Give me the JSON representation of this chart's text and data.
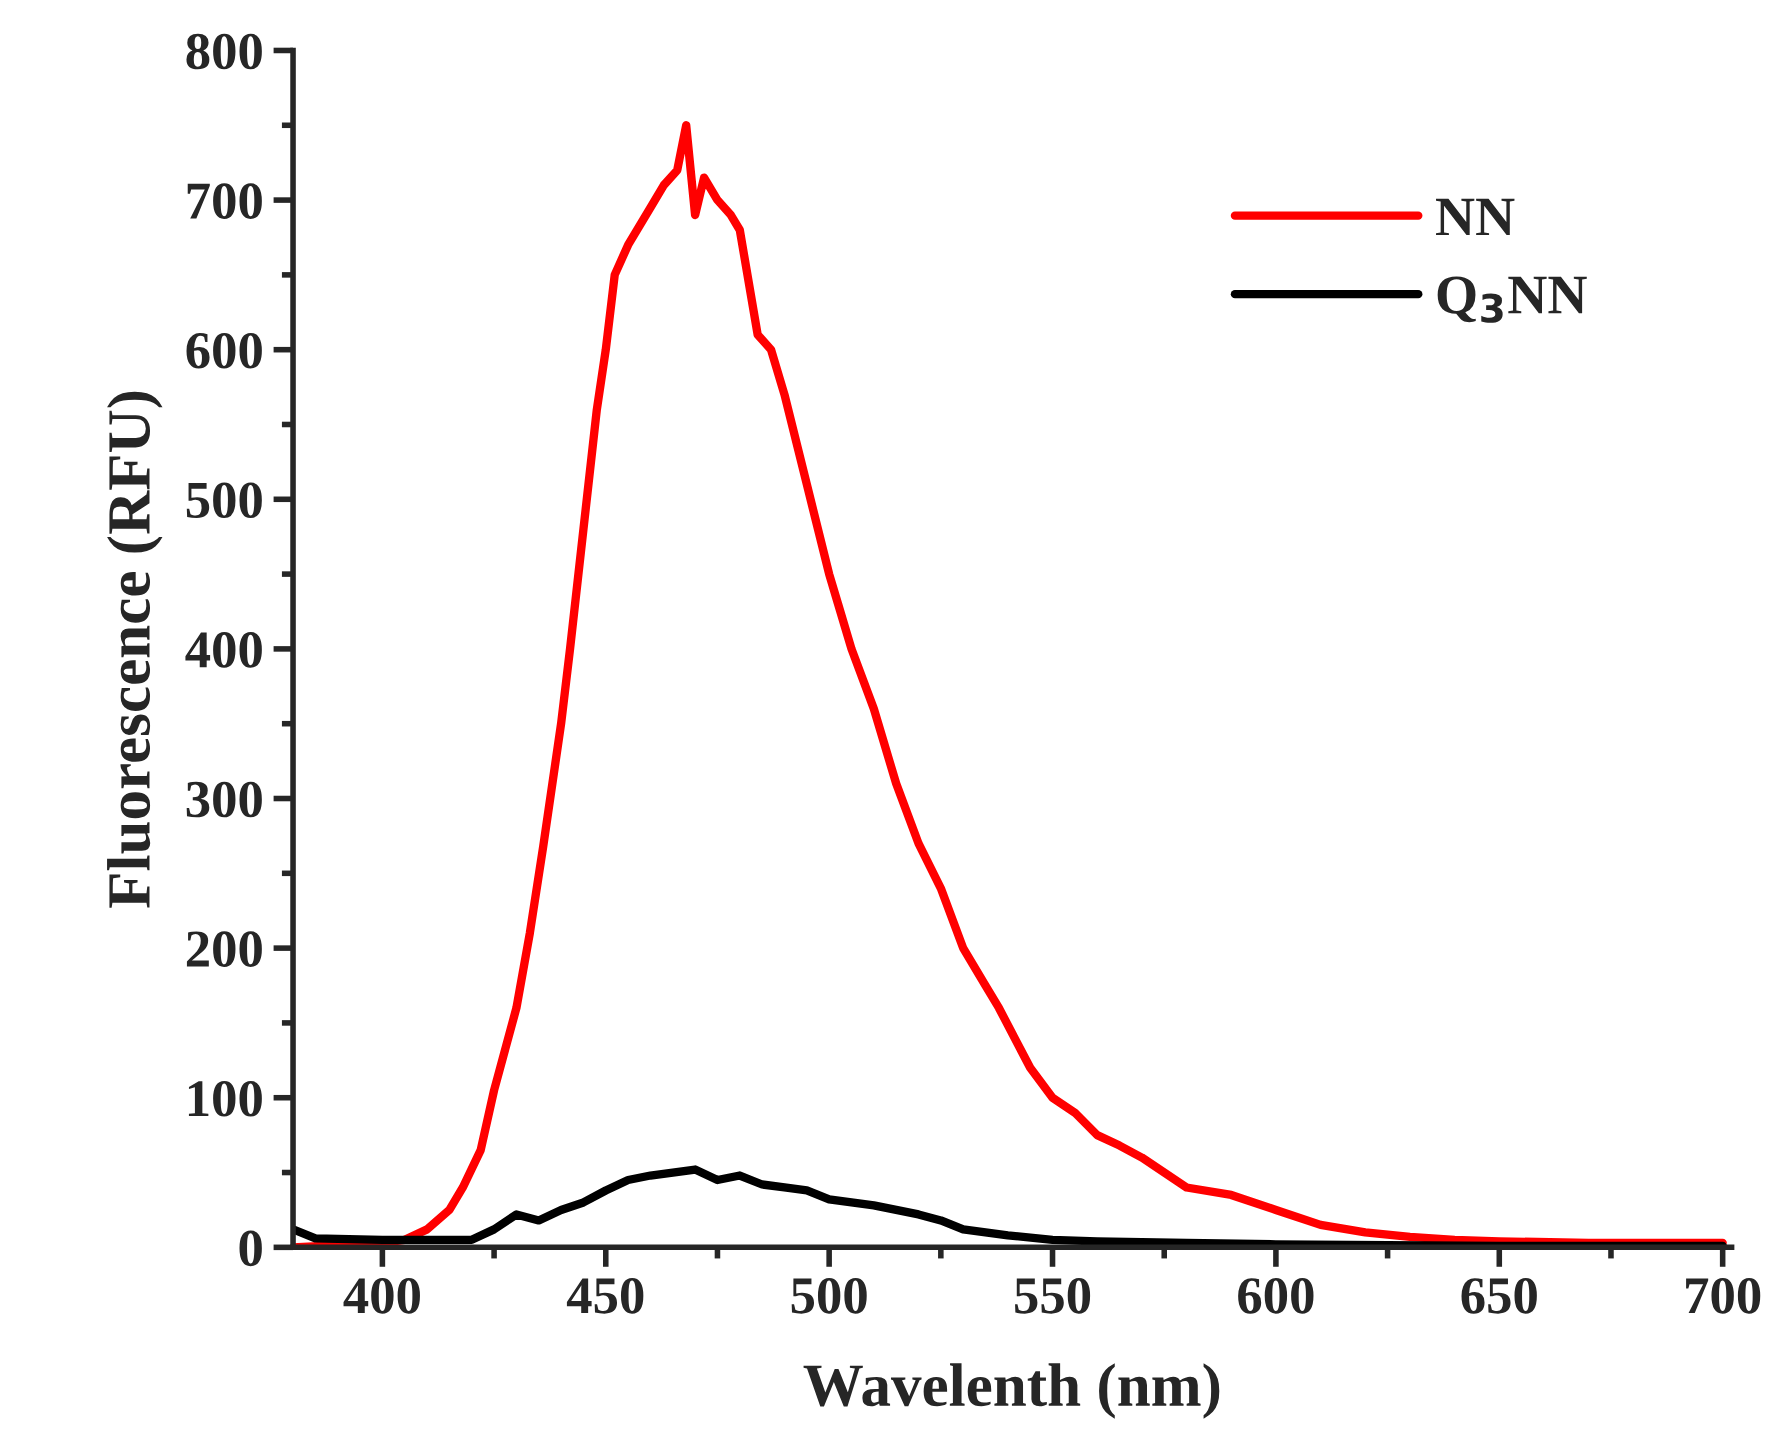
{
  "chart_data": {
    "type": "line",
    "xlabel": "Wavelenth (nm)",
    "ylabel": "Fluorescence (RFU)",
    "xlim": [
      380,
      702
    ],
    "ylim": [
      0,
      800
    ],
    "xticks": [
      400,
      450,
      500,
      550,
      600,
      650,
      700
    ],
    "yticks": [
      0,
      100,
      200,
      300,
      400,
      500,
      600,
      700,
      800
    ],
    "grid": false,
    "legend": "top right",
    "marker": "none",
    "line_style": "solid",
    "series": [
      {
        "name": "NN",
        "color": "#ff0000",
        "x": [
          380,
          400,
          405,
          410,
          415,
          418,
          422,
          425,
          430,
          433,
          436,
          440,
          442,
          445,
          448,
          450,
          452,
          455,
          460,
          463,
          466,
          468,
          470,
          472,
          475,
          478,
          480,
          484,
          487,
          490,
          495,
          500,
          502,
          505,
          510,
          515,
          520,
          525,
          530,
          535,
          538,
          545,
          550,
          555,
          560,
          565,
          570,
          575,
          580,
          590,
          600,
          610,
          620,
          630,
          640,
          650,
          670,
          700
        ],
        "values": [
          0,
          3,
          5,
          12,
          25,
          40,
          65,
          105,
          160,
          210,
          268,
          350,
          400,
          480,
          560,
          600,
          650,
          670,
          695,
          710,
          720,
          750,
          690,
          715,
          700,
          690,
          680,
          610,
          600,
          570,
          510,
          450,
          430,
          400,
          360,
          310,
          270,
          240,
          200,
          175,
          160,
          120,
          100,
          90,
          75,
          68,
          60,
          50,
          40,
          35,
          25,
          15,
          10,
          7,
          5,
          4,
          3,
          3
        ]
      },
      {
        "name": "Q$_{3}$NN",
        "color": "#000000",
        "x": [
          380,
          385,
          400,
          410,
          420,
          425,
          430,
          435,
          440,
          445,
          450,
          455,
          460,
          465,
          470,
          475,
          480,
          485,
          490,
          495,
          500,
          505,
          510,
          515,
          520,
          525,
          530,
          540,
          550,
          560,
          580,
          600,
          650,
          700
        ],
        "values": [
          12,
          6,
          5,
          5,
          5,
          12,
          22,
          18,
          25,
          30,
          38,
          45,
          48,
          50,
          52,
          45,
          48,
          42,
          40,
          38,
          32,
          30,
          28,
          25,
          22,
          18,
          12,
          8,
          5,
          4,
          3,
          2,
          1,
          1
        ]
      }
    ]
  }
}
